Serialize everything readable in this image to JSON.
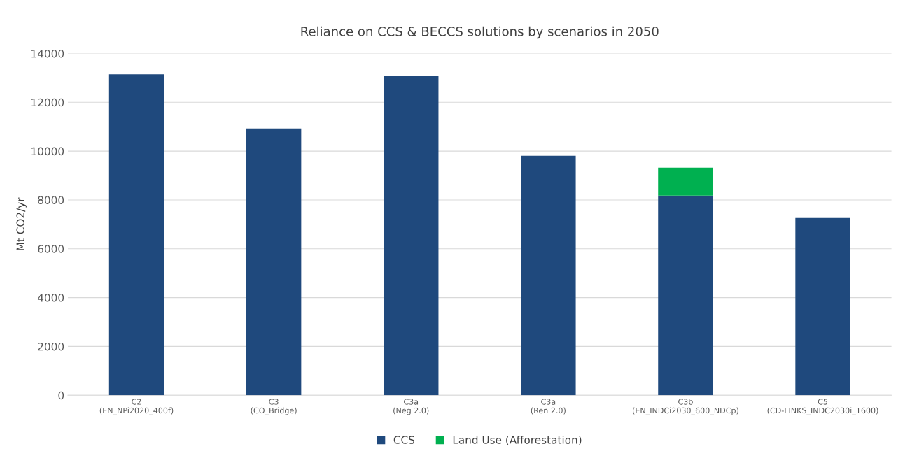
{
  "chart_data": {
    "type": "bar",
    "title": "Reliance on CCS & BECCS solutions by scenarios in 2050",
    "ylabel": "Mt CO2/yr",
    "categories": [
      "C2\n(EN_NPi2020_400f)",
      "C3\n(CO_Bridge)",
      "C3a\n(Neg 2.0)",
      "C3a\n(Ren 2.0)",
      "C3b\n(EN_INDCi2030_600_NDCp)",
      "C5\n(CD-LINKS_INDC2030i_1600)"
    ],
    "series": [
      {
        "name": "CCS",
        "color": "#1f497d",
        "values": [
          13150,
          10930,
          13080,
          9810,
          8180,
          7260
        ]
      },
      {
        "name": "Land Use (Afforestation)",
        "color": "#00b050",
        "values": [
          null,
          null,
          null,
          null,
          1140,
          null
        ]
      }
    ],
    "stacked": true,
    "ylim": [
      0,
      14000
    ],
    "yticks": [
      0,
      2000,
      4000,
      6000,
      8000,
      10000,
      12000,
      14000
    ],
    "grid": "y",
    "legend": "bottom"
  }
}
